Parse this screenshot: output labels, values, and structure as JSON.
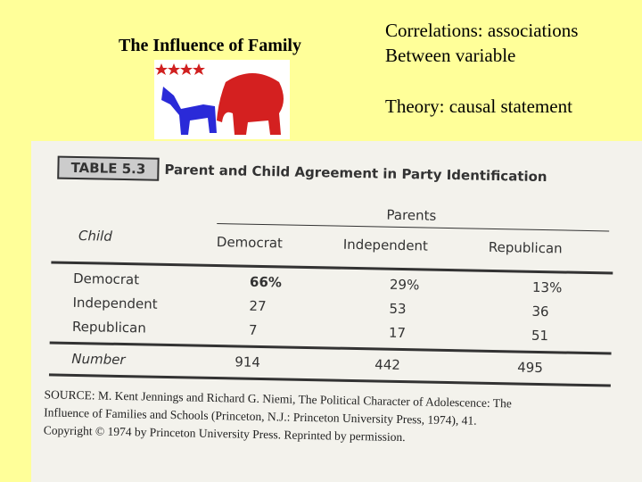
{
  "slide": {
    "title": "The Influence of Family",
    "points": [
      "Correlations:  associations",
      "Between variable",
      "Theory:  causal statement"
    ]
  },
  "table": {
    "label": "TABLE 5.3",
    "title": "Parent and Child Agreement in Party Identification",
    "column_group": "Parents",
    "row_header": "Child",
    "columns": [
      "Democrat",
      "Independent",
      "Republican"
    ],
    "rows": [
      [
        "Democrat",
        "66%",
        "29%",
        "13%"
      ],
      [
        "Independent",
        "27",
        "53",
        "36"
      ],
      [
        "Republican",
        "7",
        "17",
        "51"
      ]
    ],
    "total_row": [
      "Number",
      "914",
      "442",
      "495"
    ],
    "source": [
      "SOURCE: M. Kent Jennings and Richard G. Niemi, The Political Character of Adolescence: The",
      "Influence of Families and Schools (Princeton, N.J.: Princeton University Press, 1974), 41.",
      "Copyright © 1974 by Princeton University Press. Reprinted by permission."
    ]
  }
}
